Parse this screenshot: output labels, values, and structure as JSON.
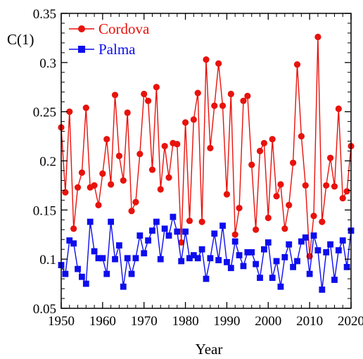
{
  "chart_data": {
    "type": "line",
    "title": "",
    "xlabel": "Year",
    "ylabel": "C(1)",
    "xlim": [
      1950,
      2020
    ],
    "ylim": [
      0.05,
      0.35
    ],
    "x_ticks": [
      1950,
      1960,
      1970,
      1980,
      1990,
      2000,
      2010,
      2020
    ],
    "x_tick_labels": [
      "1950",
      "1960",
      "1970",
      "1980",
      "1990",
      "2000",
      "2010",
      "2020"
    ],
    "y_ticks": [
      0.05,
      0.1,
      0.15,
      0.2,
      0.25,
      0.3,
      0.35
    ],
    "y_tick_labels": [
      "0.05",
      "0.1",
      "0.15",
      "0.2",
      "0.25",
      "0.3",
      "0.35"
    ],
    "grid": false,
    "legend_position": "top-left",
    "x": [
      1950,
      1951,
      1952,
      1953,
      1954,
      1955,
      1956,
      1957,
      1958,
      1959,
      1960,
      1961,
      1962,
      1963,
      1964,
      1965,
      1966,
      1967,
      1968,
      1969,
      1970,
      1971,
      1972,
      1973,
      1974,
      1975,
      1976,
      1977,
      1978,
      1979,
      1980,
      1981,
      1982,
      1983,
      1984,
      1985,
      1986,
      1987,
      1988,
      1989,
      1990,
      1991,
      1992,
      1993,
      1994,
      1995,
      1996,
      1997,
      1998,
      1999,
      2000,
      2001,
      2002,
      2003,
      2004,
      2005,
      2006,
      2007,
      2008,
      2009,
      2010,
      2011,
      2012,
      2013,
      2014,
      2015,
      2016,
      2017,
      2018,
      2019,
      2020
    ],
    "series": [
      {
        "name": "Cordova",
        "color": "#e8120c",
        "marker": "circle",
        "values": [
          0.234,
          0.168,
          0.25,
          0.131,
          0.173,
          0.188,
          0.254,
          0.173,
          0.175,
          0.155,
          0.187,
          0.222,
          0.176,
          0.267,
          0.205,
          0.18,
          0.249,
          0.149,
          0.158,
          0.207,
          0.268,
          0.261,
          0.191,
          0.275,
          0.171,
          0.215,
          0.183,
          0.218,
          0.217,
          0.117,
          0.239,
          0.139,
          0.242,
          0.269,
          0.138,
          0.303,
          0.213,
          0.256,
          0.299,
          0.256,
          0.166,
          0.268,
          0.125,
          0.152,
          0.261,
          0.266,
          0.196,
          0.13,
          0.21,
          0.218,
          0.142,
          0.222,
          0.164,
          0.176,
          0.131,
          0.155,
          0.198,
          0.298,
          0.225,
          0.175,
          0.103,
          0.144,
          0.326,
          0.138,
          0.175,
          0.203,
          0.174,
          0.253,
          0.162,
          0.169,
          0.215
        ]
      },
      {
        "name": "Palma",
        "color": "#0d0ded",
        "marker": "square",
        "values": [
          0.094,
          0.085,
          0.119,
          0.116,
          0.09,
          0.082,
          0.075,
          0.138,
          0.108,
          0.101,
          0.101,
          0.085,
          0.138,
          0.1,
          0.114,
          0.072,
          0.101,
          0.085,
          0.101,
          0.124,
          0.106,
          0.119,
          0.129,
          0.138,
          0.1,
          0.131,
          0.124,
          0.143,
          0.128,
          0.098,
          0.128,
          0.101,
          0.104,
          0.101,
          0.11,
          0.08,
          0.101,
          0.126,
          0.099,
          0.134,
          0.097,
          0.091,
          0.118,
          0.104,
          0.093,
          0.107,
          0.107,
          0.095,
          0.081,
          0.11,
          0.117,
          0.081,
          0.098,
          0.072,
          0.102,
          0.115,
          0.092,
          0.098,
          0.118,
          0.122,
          0.085,
          0.124,
          0.109,
          0.069,
          0.107,
          0.115,
          0.079,
          0.109,
          0.119,
          0.092,
          0.129
        ]
      }
    ]
  }
}
